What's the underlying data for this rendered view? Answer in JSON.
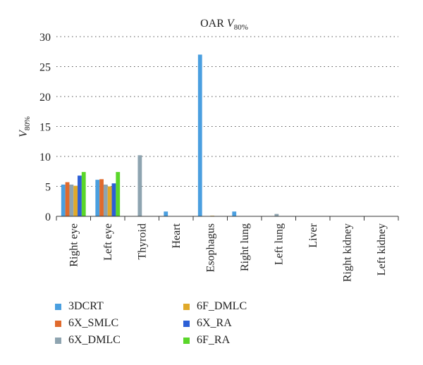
{
  "chart_data": {
    "type": "bar",
    "title": "OAR ",
    "title_symbol": "V",
    "title_subscript": "80%",
    "ylabel_symbol": "V",
    "ylabel_subscript": "80%",
    "xlabel": "",
    "ylim": [
      0,
      30
    ],
    "yticks": [
      0,
      5,
      10,
      15,
      20,
      25,
      30
    ],
    "grid": true,
    "legend_position": "bottom",
    "categories": [
      "Right eye",
      "Left eye",
      "Thyroid",
      "Heart",
      "Esophagus",
      "Right lung",
      "Left lung",
      "Liver",
      "Right kidney",
      "Left kidney"
    ],
    "series": [
      {
        "name": "3DCRT",
        "color": "#4a9fe0",
        "values": [
          5.3,
          6.1,
          0,
          0.8,
          27.0,
          0.8,
          0,
          0,
          0,
          0
        ]
      },
      {
        "name": "6X_SMLC",
        "color": "#e06a2c",
        "values": [
          5.7,
          6.2,
          0,
          0,
          0,
          0,
          0,
          0,
          0,
          0
        ]
      },
      {
        "name": "6X_DMLC",
        "color": "#8ea4b0",
        "values": [
          5.3,
          5.3,
          10.2,
          0,
          0,
          0,
          0.4,
          0,
          0,
          0
        ]
      },
      {
        "name": "6F_DMLC",
        "color": "#e0a92a",
        "values": [
          5.1,
          5.0,
          0,
          0,
          0.1,
          0,
          0,
          0,
          0,
          0
        ]
      },
      {
        "name": "6X_RA",
        "color": "#2c5fd6",
        "values": [
          6.8,
          5.5,
          0,
          0,
          0,
          0,
          0,
          0,
          0,
          0
        ]
      },
      {
        "name": "6F_RA",
        "color": "#5ad62a",
        "values": [
          7.4,
          7.4,
          0,
          0,
          0,
          0,
          0,
          0,
          0,
          0
        ]
      }
    ]
  }
}
